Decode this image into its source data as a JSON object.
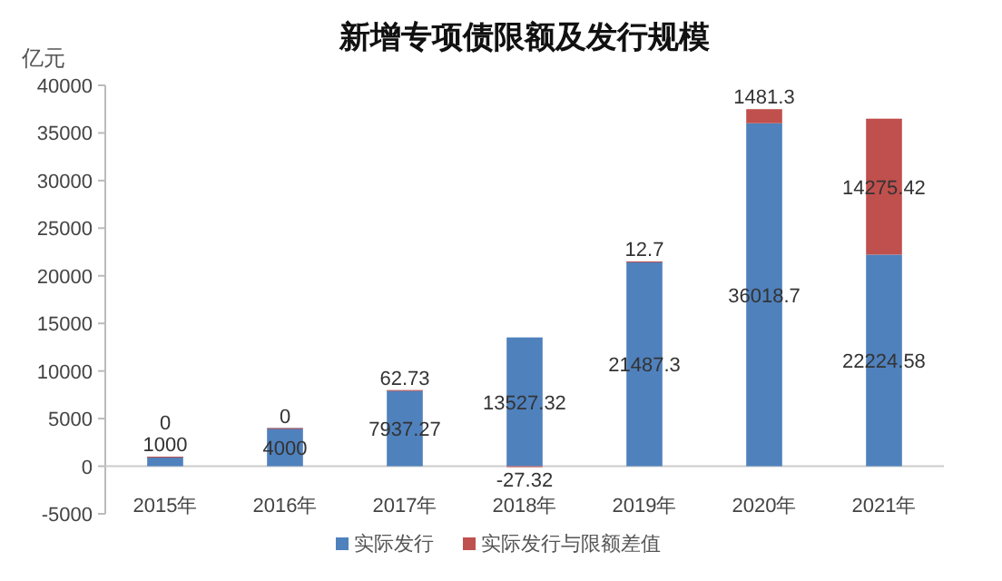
{
  "chart_data": {
    "type": "bar",
    "title": "新增专项债限额及发行规模",
    "ylabel": "亿元",
    "stacked": true,
    "data_labels": true,
    "legend": "bottom",
    "categories": [
      "2015年",
      "2016年",
      "2017年",
      "2018年",
      "2019年",
      "2020年",
      "2021年"
    ],
    "series": [
      {
        "name": "实际发行",
        "color": "#4f81bd",
        "values": [
          1000,
          4000,
          7937.27,
          13527.32,
          21487.3,
          36018.7,
          22224.58
        ]
      },
      {
        "name": "实际发行与限额差值",
        "color": "#c0504d",
        "values": [
          0,
          0,
          62.73,
          -27.32,
          12.7,
          1481.3,
          14275.42
        ]
      }
    ],
    "ylim": [
      -5000,
      40000
    ],
    "yticks": [
      -5000,
      0,
      5000,
      10000,
      15000,
      20000,
      25000,
      30000,
      35000,
      40000
    ]
  }
}
